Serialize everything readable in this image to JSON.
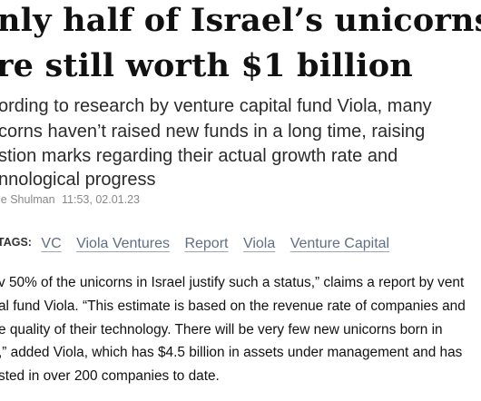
{
  "article": {
    "headline": [
      "nly half of Israel’s unicorns",
      "re still worth $1 billion"
    ],
    "subheadline": [
      "ording to research by venture capital fund Viola, many",
      "corns haven’t raised new funds in a long time, raising",
      "stion marks regarding their actual growth rate and",
      "nnological progress"
    ],
    "byline": {
      "author": "ie Shulman",
      "datetime": "11:53, 02.01.23"
    },
    "tags": {
      "label": "TAGS:",
      "items": [
        "VC",
        "Viola Ventures",
        "Report",
        "Viola",
        "Venture Capital"
      ]
    },
    "body": [
      "v 50% of the unicorns in Israel justify such a status,” claims a report by vent",
      "al fund Viola. “This estimate is based on the revenue rate of companies and",
      "e quality of their technology. There will be very few new unicorns born in",
      ",” added Viola, which has $4.5 billion in assets under management and has",
      "sted in over 200 companies to date."
    ]
  }
}
